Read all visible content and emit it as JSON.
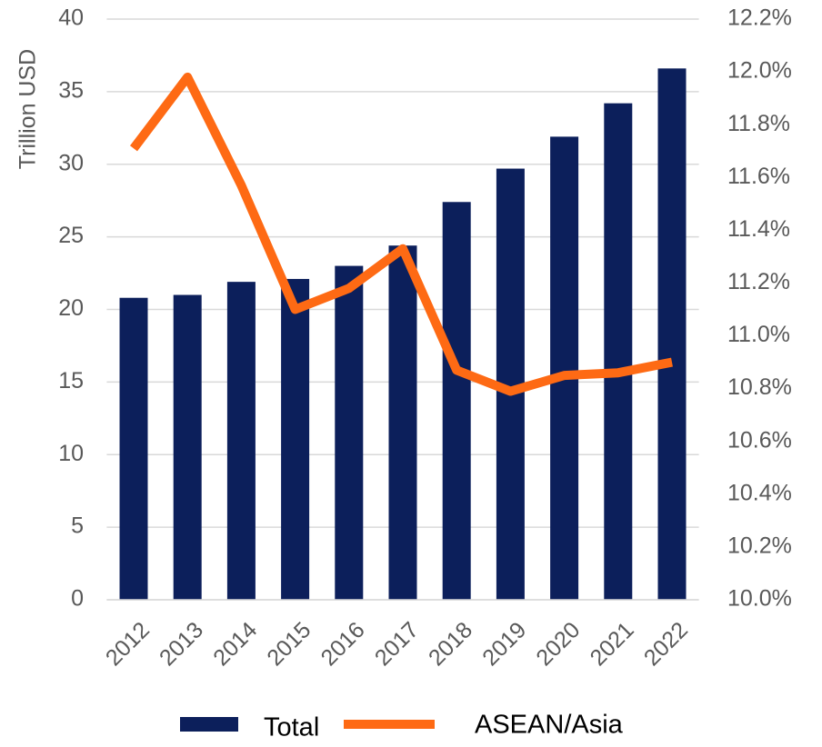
{
  "chart_data": {
    "type": "bar_line",
    "y_axis_label": "Trillion USD",
    "categories": [
      "2012",
      "2013",
      "2014",
      "2015",
      "2016",
      "2017",
      "2018",
      "2019",
      "2020",
      "2021",
      "2022"
    ],
    "series": [
      {
        "name": "Total",
        "type": "bar",
        "color": "#0c1f5b",
        "values": [
          20.8,
          21.0,
          21.9,
          22.1,
          23.0,
          24.4,
          27.4,
          29.7,
          31.9,
          34.2,
          36.6
        ]
      },
      {
        "name": "ASEAN/Asia",
        "type": "line",
        "axis": "y2",
        "color": "#fe6a14",
        "values": [
          11.71,
          11.98,
          11.57,
          11.1,
          11.18,
          11.33,
          10.87,
          10.79,
          10.85,
          10.86,
          10.9
        ]
      }
    ],
    "ylim": [
      0,
      40
    ],
    "yticks": [
      0,
      5,
      10,
      15,
      20,
      25,
      30,
      35,
      40
    ],
    "y2lim": [
      10,
      12.2
    ],
    "y2ticks": [
      {
        "value": 10,
        "label": "10.0%"
      },
      {
        "value": 10.2,
        "label": "10.2%"
      },
      {
        "value": 10.4,
        "label": "10.4%"
      },
      {
        "value": 10.6,
        "label": "10.6%"
      },
      {
        "value": 10.8,
        "label": "10.8%"
      },
      {
        "value": 11,
        "label": "11.0%"
      },
      {
        "value": 11.2,
        "label": "11.2%"
      },
      {
        "value": 11.4,
        "label": "11.4%"
      },
      {
        "value": 11.6,
        "label": "11.6%"
      },
      {
        "value": 11.8,
        "label": "11.8%"
      },
      {
        "value": 12,
        "label": "12.0%"
      },
      {
        "value": 12.2,
        "label": "12.2%"
      }
    ],
    "grid": true,
    "legend": "bottom"
  }
}
